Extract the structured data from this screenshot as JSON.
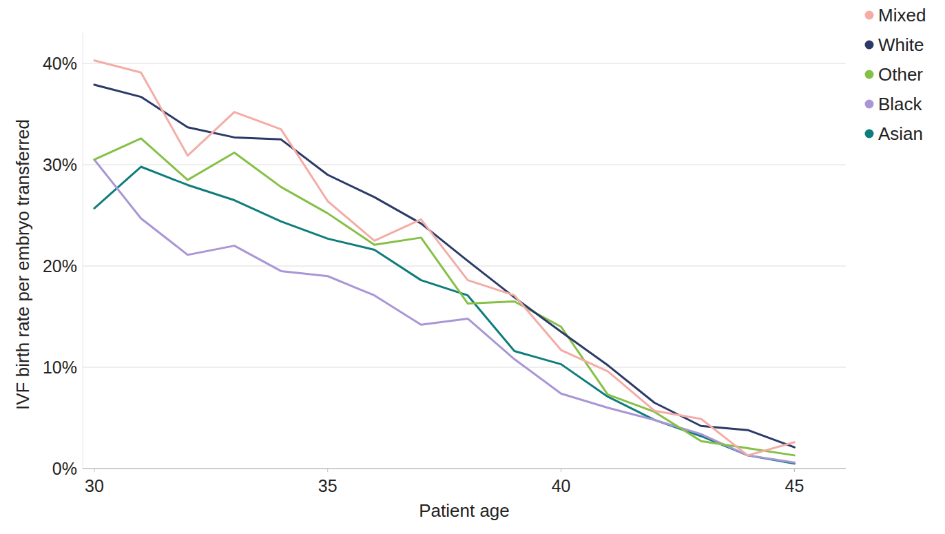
{
  "chart_data": {
    "type": "line",
    "x_label": "Patient age",
    "y_label": "IVF birth rate per embryo transferred",
    "x": [
      30,
      31,
      32,
      33,
      34,
      35,
      36,
      37,
      38,
      39,
      40,
      41,
      42,
      43,
      44,
      45
    ],
    "series": [
      {
        "name": "Mixed",
        "color": "#f4aca6",
        "values": [
          40.3,
          39.1,
          30.9,
          35.2,
          33.5,
          26.4,
          22.5,
          24.6,
          18.6,
          17.1,
          11.7,
          9.6,
          5.7,
          4.9,
          1.3,
          2.6
        ]
      },
      {
        "name": "White",
        "color": "#2b3a67",
        "values": [
          37.9,
          36.7,
          33.7,
          32.7,
          32.5,
          29.0,
          26.8,
          24.2,
          20.5,
          16.9,
          13.5,
          10.2,
          6.5,
          4.2,
          3.8,
          2.1
        ]
      },
      {
        "name": "Other",
        "color": "#85c046",
        "values": [
          30.5,
          32.6,
          28.5,
          31.2,
          27.8,
          25.2,
          22.1,
          22.8,
          16.3,
          16.5,
          14.0,
          7.3,
          5.6,
          2.7,
          2.0,
          1.3
        ]
      },
      {
        "name": "Black",
        "color": "#a996d6",
        "values": [
          30.5,
          24.7,
          21.1,
          22.0,
          19.5,
          19.0,
          17.1,
          14.2,
          14.8,
          10.8,
          7.4,
          6.0,
          4.8,
          3.4,
          1.3,
          0.6
        ]
      },
      {
        "name": "Asian",
        "color": "#0f7d7c",
        "values": [
          25.7,
          29.8,
          28.0,
          26.5,
          24.4,
          22.7,
          21.6,
          18.6,
          17.1,
          11.6,
          10.3,
          7.1,
          4.8,
          3.2,
          1.3,
          0.5
        ]
      }
    ],
    "xlim": [
      29.75,
      46.1
    ],
    "ylim": [
      0,
      43
    ],
    "xticks": [
      30,
      35,
      40,
      45
    ],
    "yticks": [
      {
        "value": 0,
        "label": "0%"
      },
      {
        "value": 10,
        "label": "10%"
      },
      {
        "value": 20,
        "label": "20%"
      },
      {
        "value": 30,
        "label": "30%"
      },
      {
        "value": 40,
        "label": "40%"
      }
    ],
    "grid": true,
    "legend": "top-right"
  }
}
